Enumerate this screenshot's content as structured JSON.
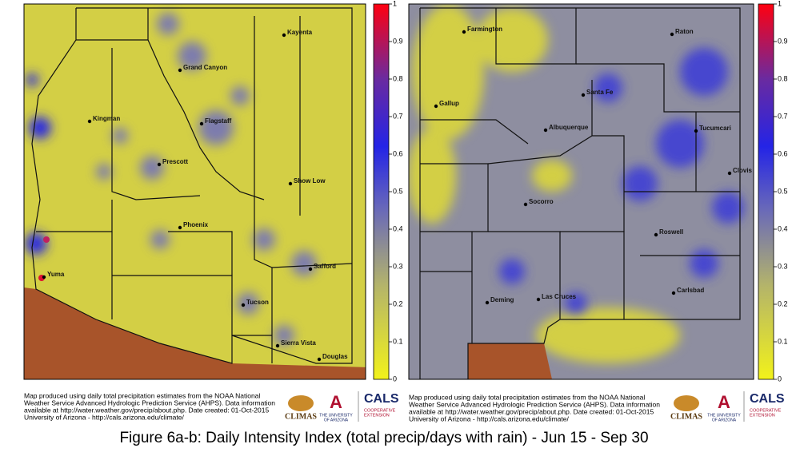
{
  "maps": [
    {
      "cities": [
        "Kayenta",
        "Grand Canyon",
        "Kingman",
        "Flagstaff",
        "Prescott",
        "Show Low",
        "Phoenix",
        "Safford",
        "Yuma",
        "Tucson",
        "Sierra Vista",
        "Douglas"
      ]
    },
    {
      "cities": [
        "Farmington",
        "Raton",
        "Gallup",
        "Santa Fe",
        "Albuquerque",
        "Tucumcari",
        "Clovis",
        "Socorro",
        "Roswell",
        "Carlsbad",
        "Deming",
        "Las Cruces"
      ]
    }
  ],
  "colorbar": {
    "ticks": [
      0,
      0.1,
      0.2,
      0.3,
      0.4,
      0.5,
      0.6,
      0.7,
      0.8,
      0.9,
      1
    ]
  },
  "footer": {
    "lines": [
      "Map produced using daily total precipitation estimates from the NOAA National",
      "Weather Service Advanced Hydrologic Prediction Service (AHPS). Data information",
      "available at http://water.weather.gov/precip/about.php. Date created: 01-Oct-2015",
      "University of Arizona - http://cals.arizona.edu/climate/"
    ],
    "logos": [
      "CLIMAS",
      "THE UNIVERSITY",
      "OF ARIZONA",
      "CALS",
      "COOPERATIVE",
      "EXTENSION"
    ]
  },
  "caption": "Figure 6a-b: Daily Intensity Index (total precip/days with rain) - Jun 15 - Sep 30"
}
